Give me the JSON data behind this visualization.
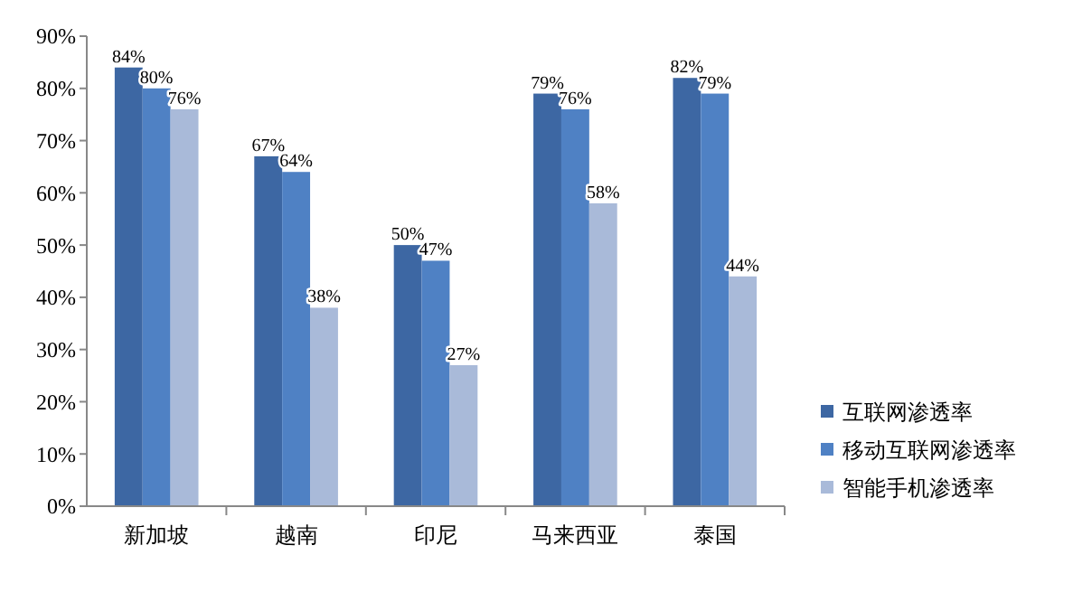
{
  "chart_data": {
    "type": "bar",
    "categories": [
      "新加坡",
      "越南",
      "印尼",
      "马来西亚",
      "泰国"
    ],
    "series": [
      {
        "name": "互联网渗透率",
        "color": "#3d67a3",
        "values": [
          84,
          67,
          50,
          79,
          82
        ],
        "value_labels": [
          "84%",
          "67%",
          "50%",
          "79%",
          "82%"
        ]
      },
      {
        "name": "移动互联网渗透率",
        "color": "#4f81c4",
        "values": [
          80,
          64,
          47,
          76,
          79
        ],
        "value_labels": [
          "80%",
          "64%",
          "47%",
          "76%",
          "79%"
        ]
      },
      {
        "name": "智能手机渗透率",
        "color": "#a9bad9",
        "values": [
          76,
          38,
          27,
          58,
          44
        ],
        "value_labels": [
          "76%",
          "38%",
          "27%",
          "58%",
          "44%"
        ]
      }
    ],
    "ylim": [
      0,
      90
    ],
    "yticks": [
      {
        "value": 0,
        "label": "0%"
      },
      {
        "value": 10,
        "label": "10%"
      },
      {
        "value": 20,
        "label": "20%"
      },
      {
        "value": 30,
        "label": "30%"
      },
      {
        "value": 40,
        "label": "40%"
      },
      {
        "value": 50,
        "label": "50%"
      },
      {
        "value": 60,
        "label": "60%"
      },
      {
        "value": 70,
        "label": "70%"
      },
      {
        "value": 80,
        "label": "80%"
      },
      {
        "value": 90,
        "label": "90%"
      }
    ],
    "grid": false,
    "legend": "right"
  }
}
